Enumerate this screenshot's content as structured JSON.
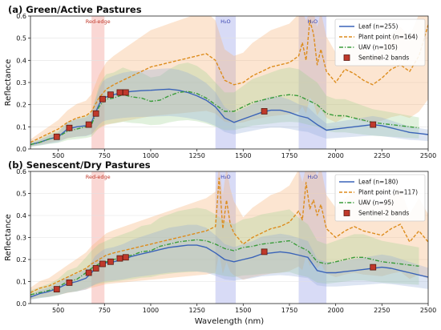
{
  "chart_data": [
    {
      "type": "line",
      "title": "(a) Green/Active Pastures",
      "xlabel": "",
      "ylabel": "Reflectance",
      "xlim": [
        350,
        2500
      ],
      "ylim": [
        0,
        0.6
      ],
      "xticks": [
        "500",
        "750",
        "1000",
        "1250",
        "1500",
        "1750",
        "2000",
        "2250",
        "2500"
      ],
      "yticks": [
        "0.0",
        "0.1",
        "0.2",
        "0.3",
        "0.4",
        "0.5",
        "0.6"
      ],
      "legend_position": "top-right",
      "regions": [
        {
          "label": "Red-edge",
          "x0": 680,
          "x1": 750,
          "color": "#f4a7a0"
        },
        {
          "label": "H₂O",
          "x0": 1350,
          "x1": 1460,
          "color": "#a9b0ea"
        },
        {
          "label": "H₂O",
          "x0": 1800,
          "x1": 1950,
          "color": "#a9b0ea"
        }
      ],
      "series": [
        {
          "name": "Leaf (n=255)",
          "color": "#3a63b8",
          "style": "solid",
          "x": [
            350,
            400,
            450,
            500,
            550,
            600,
            650,
            680,
            700,
            720,
            740,
            760,
            800,
            850,
            900,
            950,
            1000,
            1050,
            1100,
            1150,
            1200,
            1250,
            1300,
            1350,
            1400,
            1450,
            1500,
            1550,
            1600,
            1650,
            1700,
            1750,
            1800,
            1850,
            1900,
            1950,
            2000,
            2050,
            2100,
            2150,
            2200,
            2250,
            2300,
            2350,
            2400,
            2450,
            2500
          ],
          "y": [
            0.02,
            0.03,
            0.045,
            0.055,
            0.09,
            0.1,
            0.105,
            0.12,
            0.16,
            0.2,
            0.225,
            0.235,
            0.245,
            0.255,
            0.26,
            0.263,
            0.265,
            0.268,
            0.27,
            0.265,
            0.255,
            0.24,
            0.22,
            0.19,
            0.14,
            0.12,
            0.135,
            0.15,
            0.165,
            0.175,
            0.175,
            0.165,
            0.15,
            0.14,
            0.11,
            0.085,
            0.09,
            0.095,
            0.1,
            0.105,
            0.11,
            0.105,
            0.095,
            0.085,
            0.075,
            0.07,
            0.065
          ]
        },
        {
          "name": "Plant point (n=164)",
          "color": "#dd8c1c",
          "style": "dashed",
          "x": [
            350,
            400,
            450,
            500,
            550,
            600,
            650,
            680,
            700,
            720,
            740,
            760,
            800,
            850,
            900,
            950,
            1000,
            1050,
            1100,
            1150,
            1200,
            1250,
            1300,
            1350,
            1400,
            1450,
            1500,
            1550,
            1600,
            1650,
            1700,
            1750,
            1800,
            1820,
            1840,
            1860,
            1880,
            1900,
            1920,
            1950,
            2000,
            2050,
            2100,
            2150,
            2200,
            2250,
            2300,
            2350,
            2400,
            2450,
            2500
          ],
          "y": [
            0.03,
            0.05,
            0.07,
            0.09,
            0.12,
            0.14,
            0.15,
            0.17,
            0.2,
            0.23,
            0.25,
            0.27,
            0.29,
            0.31,
            0.33,
            0.35,
            0.37,
            0.38,
            0.39,
            0.4,
            0.41,
            0.42,
            0.43,
            0.4,
            0.31,
            0.29,
            0.3,
            0.33,
            0.35,
            0.37,
            0.38,
            0.39,
            0.42,
            0.48,
            0.4,
            0.58,
            0.52,
            0.38,
            0.45,
            0.35,
            0.3,
            0.36,
            0.34,
            0.31,
            0.29,
            0.32,
            0.36,
            0.38,
            0.35,
            0.42,
            0.56
          ]
        },
        {
          "name": "UAV (n=105)",
          "color": "#3a9c3a",
          "style": "dashdot",
          "x": [
            350,
            400,
            450,
            500,
            550,
            600,
            650,
            680,
            700,
            720,
            740,
            760,
            800,
            850,
            900,
            950,
            1000,
            1050,
            1100,
            1150,
            1200,
            1250,
            1300,
            1350,
            1400,
            1450,
            1500,
            1550,
            1600,
            1650,
            1700,
            1750,
            1800,
            1850,
            1900,
            1950,
            2000,
            2050,
            2100,
            2150,
            2200,
            2250,
            2300,
            2350,
            2400,
            2450
          ],
          "y": [
            0.02,
            0.03,
            0.045,
            0.055,
            0.08,
            0.09,
            0.1,
            0.11,
            0.15,
            0.19,
            0.21,
            0.225,
            0.23,
            0.245,
            0.235,
            0.23,
            0.215,
            0.22,
            0.24,
            0.255,
            0.26,
            0.25,
            0.23,
            0.2,
            0.17,
            0.17,
            0.19,
            0.21,
            0.22,
            0.23,
            0.24,
            0.245,
            0.24,
            0.22,
            0.2,
            0.16,
            0.15,
            0.15,
            0.14,
            0.13,
            0.12,
            0.115,
            0.11,
            0.105,
            0.1,
            0.095
          ]
        },
        {
          "name": "Sentinel-2 bands",
          "color": "#c0392b",
          "style": "markers",
          "x": [
            492,
            560,
            665,
            704,
            740,
            783,
            833,
            865,
            1614,
            2202
          ],
          "y": [
            0.055,
            0.095,
            0.11,
            0.16,
            0.225,
            0.245,
            0.255,
            0.255,
            0.17,
            0.11
          ]
        }
      ]
    },
    {
      "type": "line",
      "title": "(b) Senescent/Dry Pastures",
      "xlabel": "Wavelength (nm)",
      "ylabel": "Reflectance",
      "xlim": [
        350,
        2500
      ],
      "ylim": [
        0,
        0.6
      ],
      "xticks": [
        "500",
        "750",
        "1000",
        "1250",
        "1500",
        "1750",
        "2000",
        "2250",
        "2500"
      ],
      "yticks": [
        "0.0",
        "0.1",
        "0.2",
        "0.3",
        "0.4",
        "0.5",
        "0.6"
      ],
      "legend_position": "top-right",
      "regions": [
        {
          "label": "Red-edge",
          "x0": 680,
          "x1": 750,
          "color": "#f4a7a0"
        },
        {
          "label": "H₂O",
          "x0": 1350,
          "x1": 1460,
          "color": "#a9b0ea"
        },
        {
          "label": "H₂O",
          "x0": 1800,
          "x1": 1950,
          "color": "#a9b0ea"
        }
      ],
      "series": [
        {
          "name": "Leaf (n=180)",
          "color": "#3a63b8",
          "style": "solid",
          "x": [
            350,
            400,
            450,
            500,
            550,
            600,
            650,
            680,
            700,
            720,
            740,
            760,
            800,
            850,
            900,
            950,
            1000,
            1050,
            1100,
            1150,
            1200,
            1250,
            1300,
            1350,
            1400,
            1450,
            1500,
            1550,
            1600,
            1650,
            1700,
            1750,
            1800,
            1850,
            1900,
            1950,
            2000,
            2050,
            2100,
            2150,
            2200,
            2250,
            2300,
            2350,
            2400,
            2450,
            2500
          ],
          "y": [
            0.03,
            0.045,
            0.055,
            0.07,
            0.09,
            0.1,
            0.115,
            0.14,
            0.16,
            0.17,
            0.18,
            0.185,
            0.19,
            0.2,
            0.215,
            0.225,
            0.235,
            0.245,
            0.255,
            0.26,
            0.265,
            0.265,
            0.255,
            0.23,
            0.2,
            0.19,
            0.2,
            0.21,
            0.225,
            0.23,
            0.235,
            0.23,
            0.22,
            0.21,
            0.15,
            0.14,
            0.14,
            0.145,
            0.15,
            0.155,
            0.16,
            0.165,
            0.16,
            0.15,
            0.14,
            0.13,
            0.12
          ]
        },
        {
          "name": "Plant point (n=117)",
          "color": "#dd8c1c",
          "style": "dashed",
          "x": [
            350,
            400,
            450,
            500,
            550,
            600,
            650,
            680,
            700,
            720,
            740,
            760,
            800,
            850,
            900,
            950,
            1000,
            1050,
            1100,
            1150,
            1200,
            1250,
            1300,
            1350,
            1370,
            1390,
            1410,
            1430,
            1450,
            1500,
            1550,
            1600,
            1650,
            1700,
            1750,
            1800,
            1820,
            1840,
            1860,
            1880,
            1900,
            1920,
            1950,
            2000,
            2050,
            2100,
            2150,
            2200,
            2250,
            2300,
            2350,
            2400,
            2450,
            2500
          ],
          "y": [
            0.05,
            0.07,
            0.08,
            0.1,
            0.12,
            0.14,
            0.16,
            0.18,
            0.19,
            0.2,
            0.21,
            0.22,
            0.23,
            0.24,
            0.25,
            0.26,
            0.27,
            0.28,
            0.29,
            0.3,
            0.31,
            0.32,
            0.33,
            0.35,
            0.57,
            0.34,
            0.47,
            0.36,
            0.32,
            0.27,
            0.3,
            0.32,
            0.34,
            0.35,
            0.37,
            0.42,
            0.38,
            0.55,
            0.43,
            0.47,
            0.4,
            0.45,
            0.34,
            0.3,
            0.33,
            0.35,
            0.33,
            0.32,
            0.31,
            0.34,
            0.36,
            0.28,
            0.33,
            0.28
          ]
        },
        {
          "name": "UAV (n=95)",
          "color": "#3a9c3a",
          "style": "dashdot",
          "x": [
            350,
            400,
            450,
            500,
            550,
            600,
            650,
            680,
            700,
            720,
            740,
            760,
            800,
            850,
            900,
            950,
            1000,
            1050,
            1100,
            1150,
            1200,
            1250,
            1300,
            1350,
            1400,
            1450,
            1500,
            1550,
            1600,
            1650,
            1700,
            1750,
            1800,
            1850,
            1900,
            1950,
            2000,
            2050,
            2100,
            2150,
            2200,
            2250,
            2300,
            2350,
            2400,
            2450
          ],
          "y": [
            0.04,
            0.05,
            0.06,
            0.075,
            0.1,
            0.11,
            0.14,
            0.16,
            0.17,
            0.18,
            0.185,
            0.19,
            0.2,
            0.21,
            0.22,
            0.235,
            0.24,
            0.26,
            0.27,
            0.28,
            0.285,
            0.29,
            0.285,
            0.27,
            0.25,
            0.24,
            0.255,
            0.26,
            0.27,
            0.275,
            0.28,
            0.285,
            0.26,
            0.24,
            0.19,
            0.18,
            0.19,
            0.2,
            0.21,
            0.21,
            0.2,
            0.19,
            0.185,
            0.18,
            0.175,
            0.17
          ]
        },
        {
          "name": "Sentinel-2 bands",
          "color": "#c0392b",
          "style": "markers",
          "x": [
            492,
            560,
            665,
            704,
            740,
            783,
            833,
            865,
            1614,
            2202
          ],
          "y": [
            0.065,
            0.095,
            0.14,
            0.16,
            0.18,
            0.19,
            0.205,
            0.21,
            0.235,
            0.165
          ]
        }
      ]
    }
  ]
}
